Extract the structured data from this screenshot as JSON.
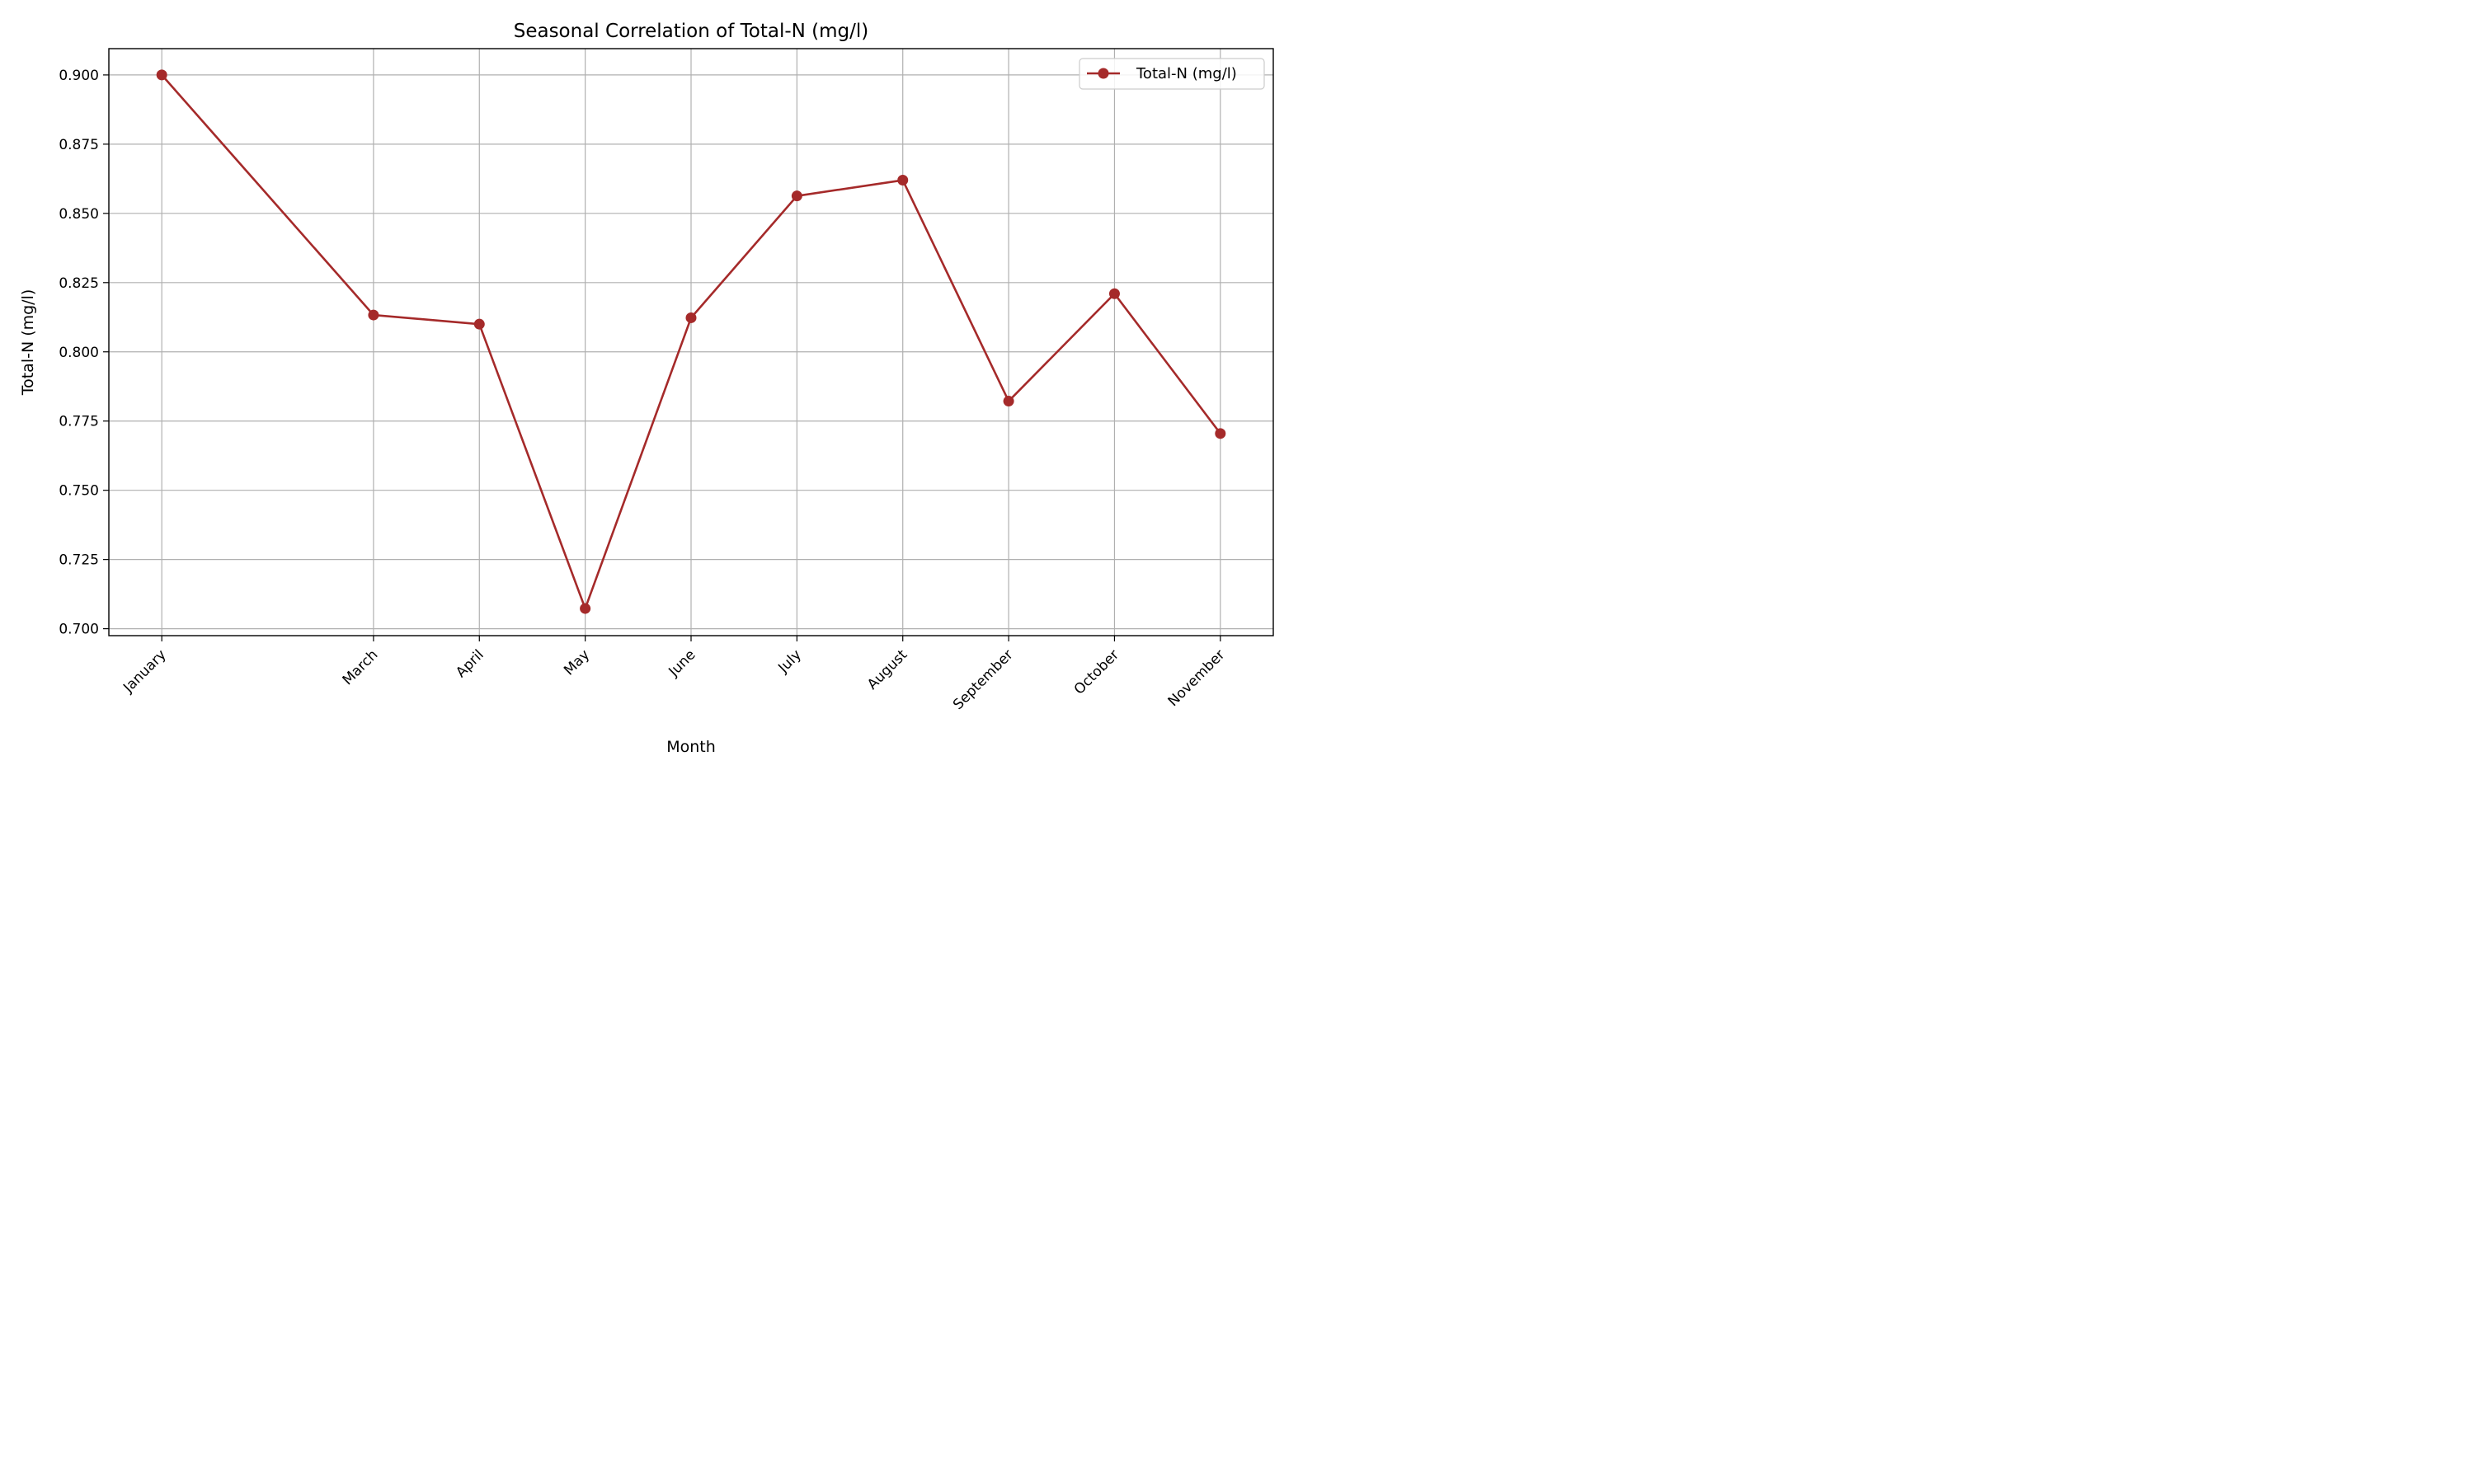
{
  "chart_data": {
    "type": "line",
    "title": "Seasonal Correlation of Total-N (mg/l)",
    "xlabel": "Month",
    "ylabel": "Total-N (mg/l)",
    "x_positions": [
      1,
      3,
      4,
      5,
      6,
      7,
      8,
      9,
      10,
      11
    ],
    "categories": [
      "January",
      "March",
      "April",
      "May",
      "June",
      "July",
      "August",
      "September",
      "October",
      "November"
    ],
    "series": [
      {
        "name": "Total-N (mg/l)",
        "color": "#a52a2a",
        "values": [
          0.9,
          0.8133,
          0.81,
          0.7073,
          0.8123,
          0.8563,
          0.862,
          0.7822,
          0.821,
          0.7705
        ]
      }
    ],
    "xlim": [
      0.5,
      11.5
    ],
    "ylim": [
      0.6975,
      0.9095
    ],
    "yticks": [
      "0.700",
      "0.725",
      "0.750",
      "0.775",
      "0.800",
      "0.825",
      "0.850",
      "0.875",
      "0.900"
    ],
    "ytick_values": [
      0.7,
      0.725,
      0.75,
      0.775,
      0.8,
      0.825,
      0.85,
      0.875,
      0.9
    ],
    "grid": true,
    "legend_position": "top-right"
  }
}
